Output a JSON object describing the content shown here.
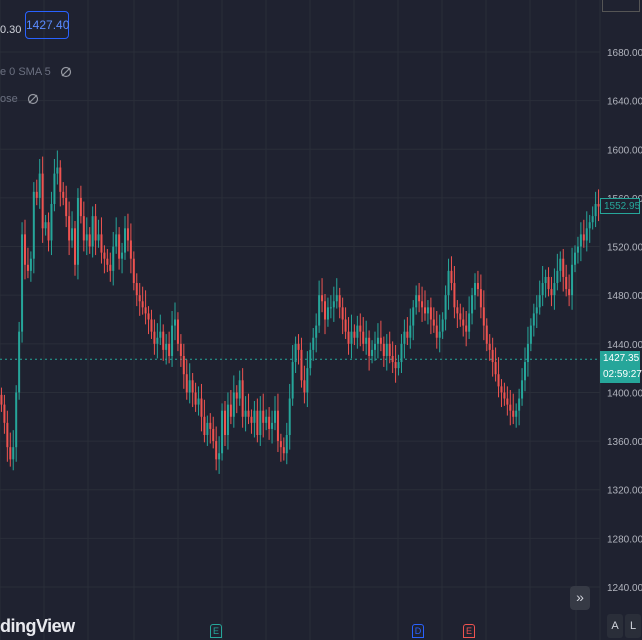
{
  "legend": {
    "price_left": "0.30",
    "price_box": "1427.40",
    "row1": "e 0 SMA 5",
    "row2": "ose"
  },
  "brand": {
    "text": "dingView"
  },
  "markers": [
    {
      "label": "E",
      "color": "#26a69a"
    },
    {
      "label": "D",
      "color": "#2962ff"
    },
    {
      "label": "E",
      "color": "#ef5350"
    }
  ],
  "buttons": {
    "scroll": "»",
    "auto": "A",
    "log": "L"
  },
  "tags": {
    "upper_price": "1552.95",
    "current_price": "1427.35",
    "countdown": "02:59:27"
  },
  "colors": {
    "background": "#1f2230",
    "up": "#26a69a",
    "down": "#ef5350",
    "grid": "#2a2e39",
    "axis_text": "#b2b5be"
  },
  "chart_data": {
    "type": "candlestick",
    "ylim": [
      1220,
      1700
    ],
    "y_ticks": [
      1240,
      1280,
      1320,
      1360,
      1400,
      1440,
      1480,
      1520,
      1560,
      1600,
      1640,
      1680
    ],
    "y_tick_labels": [
      "1240.00",
      "1280.00",
      "1320.00",
      "1360.00",
      "1400.00",
      "1440.00",
      "1480.00",
      "1520.00",
      "1560.00",
      "1600.00",
      "1640.00",
      "1680.00"
    ],
    "current_price": 1427.35,
    "upper_price": 1552.95,
    "closes": [
      1390,
      1375,
      1355,
      1345,
      1355,
      1400,
      1450,
      1530,
      1505,
      1500,
      1510,
      1565,
      1560,
      1580,
      1535,
      1540,
      1525,
      1555,
      1580,
      1585,
      1565,
      1560,
      1545,
      1525,
      1535,
      1505,
      1560,
      1545,
      1525,
      1530,
      1520,
      1545,
      1525,
      1530,
      1515,
      1510,
      1505,
      1500,
      1520,
      1530,
      1510,
      1515,
      1535,
      1525,
      1510,
      1490,
      1480,
      1475,
      1470,
      1465,
      1460,
      1450,
      1440,
      1445,
      1450,
      1435,
      1440,
      1430,
      1455,
      1460,
      1440,
      1430,
      1415,
      1400,
      1410,
      1400,
      1390,
      1395,
      1380,
      1365,
      1375,
      1370,
      1360,
      1345,
      1350,
      1385,
      1365,
      1390,
      1380,
      1400,
      1395,
      1410,
      1380,
      1385,
      1380,
      1375,
      1385,
      1365,
      1385,
      1375,
      1380,
      1370,
      1375,
      1385,
      1360,
      1355,
      1350,
      1365,
      1395,
      1425,
      1440,
      1435,
      1410,
      1400,
      1420,
      1435,
      1445,
      1455,
      1480,
      1475,
      1460,
      1470,
      1470,
      1475,
      1480,
      1470,
      1460,
      1450,
      1440,
      1450,
      1445,
      1455,
      1450,
      1440,
      1445,
      1430,
      1435,
      1440,
      1445,
      1440,
      1430,
      1440,
      1430,
      1425,
      1420,
      1425,
      1440,
      1450,
      1445,
      1455,
      1470,
      1480,
      1475,
      1470,
      1465,
      1470,
      1460,
      1455,
      1445,
      1450,
      1460,
      1480,
      1500,
      1490,
      1470,
      1465,
      1460,
      1455,
      1450,
      1465,
      1480,
      1490,
      1485,
      1470,
      1455,
      1440,
      1435,
      1425,
      1415,
      1405,
      1400,
      1395,
      1390,
      1385,
      1380,
      1385,
      1395,
      1410,
      1425,
      1440,
      1455,
      1465,
      1470,
      1480,
      1490,
      1495,
      1485,
      1480,
      1490,
      1500,
      1510,
      1495,
      1485,
      1480,
      1505,
      1515,
      1520,
      1530,
      1525,
      1535,
      1540,
      1545,
      1555,
      1552.95
    ]
  }
}
